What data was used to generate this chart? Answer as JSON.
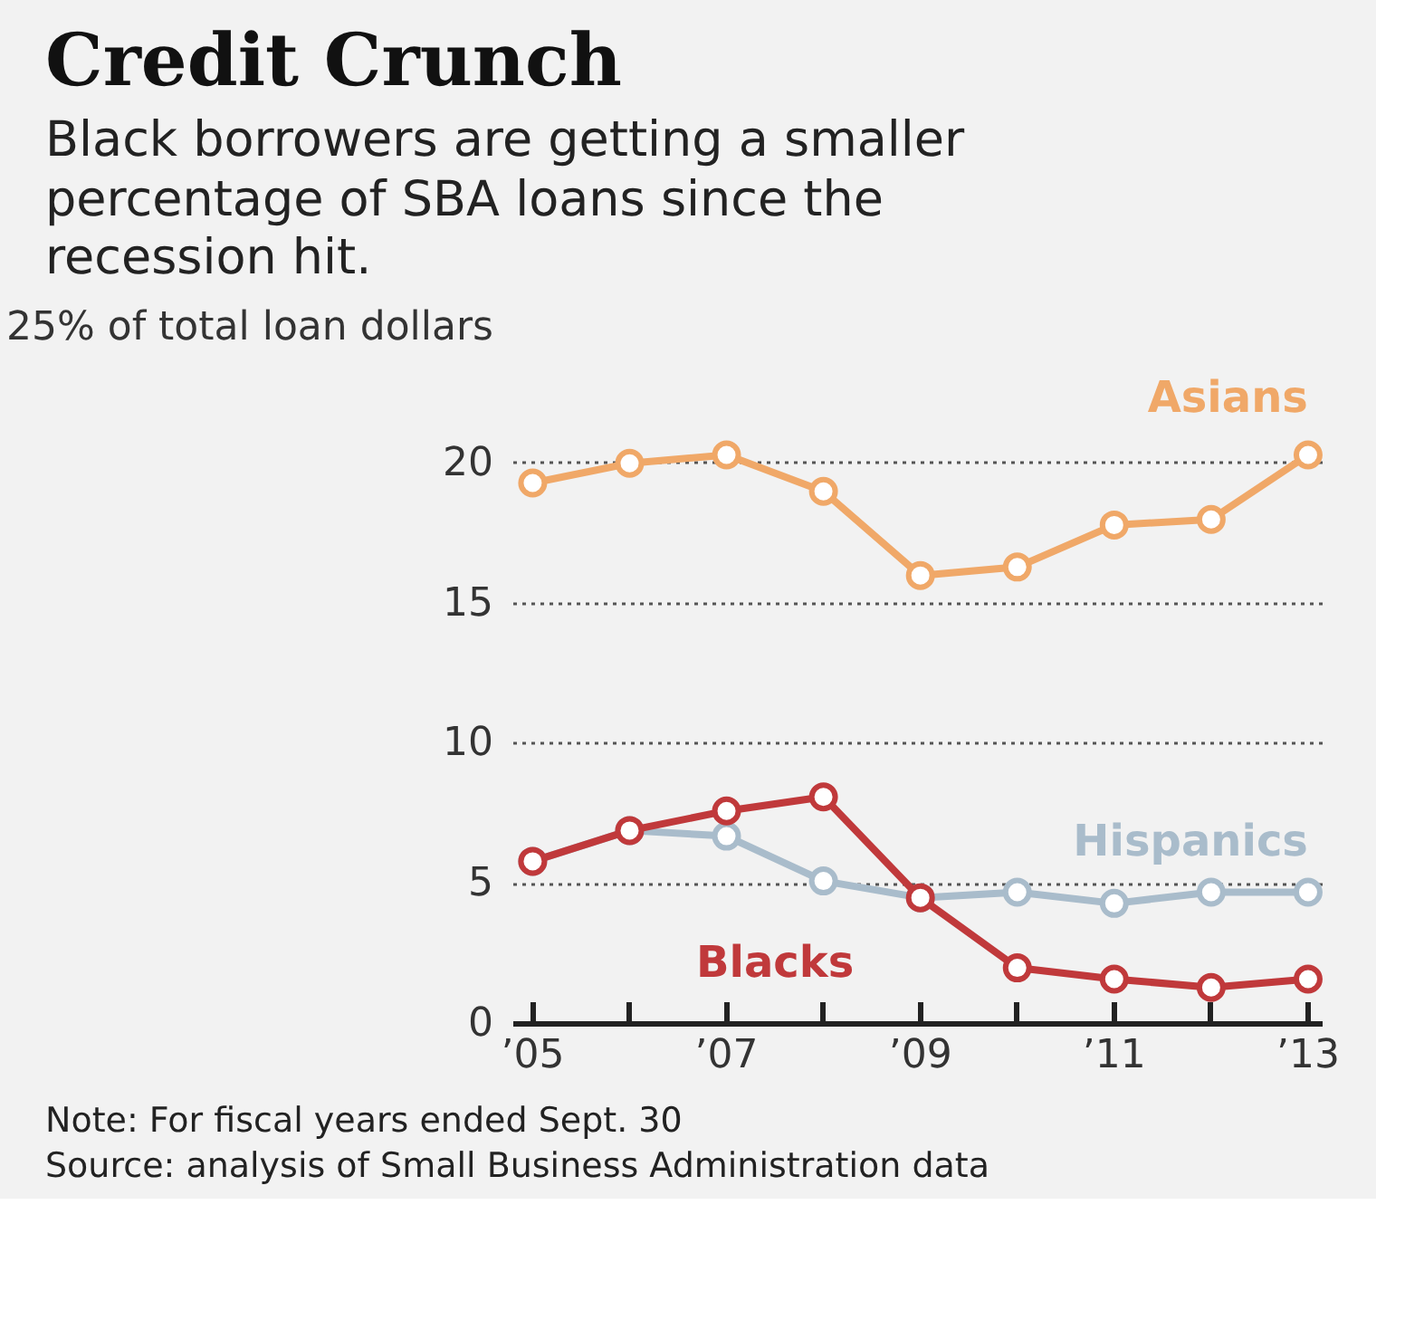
{
  "chart_data": {
    "type": "line",
    "title": "Credit Crunch",
    "subtitle": "Black borrowers are getting a smaller percentage of SBA loans since the recession hit.",
    "x": [
      2005,
      2006,
      2007,
      2008,
      2009,
      2010,
      2011,
      2012,
      2013
    ],
    "series": [
      {
        "name": "Asians",
        "color": "#f0a868",
        "values": [
          19.3,
          20.0,
          20.3,
          19.0,
          16.0,
          16.3,
          17.8,
          18.0,
          20.3
        ]
      },
      {
        "name": "Hispanics",
        "color": "#a9bccb",
        "values": [
          5.8,
          6.9,
          6.7,
          5.1,
          4.5,
          4.7,
          4.3,
          4.7,
          4.7
        ]
      },
      {
        "name": "Blacks",
        "color": "#c0393b",
        "values": [
          5.8,
          6.9,
          7.6,
          8.1,
          4.5,
          2.0,
          1.6,
          1.3,
          1.6
        ]
      }
    ],
    "xlim": [
      2004.8,
      2013.15
    ],
    "ylim": [
      0,
      25
    ],
    "xticks": [
      {
        "value": 2005,
        "label": "’05"
      },
      {
        "value": 2006,
        "label": null
      },
      {
        "value": 2007,
        "label": "’07"
      },
      {
        "value": 2008,
        "label": null
      },
      {
        "value": 2009,
        "label": "’09"
      },
      {
        "value": 2010,
        "label": null
      },
      {
        "value": 2011,
        "label": "’11"
      },
      {
        "value": 2012,
        "label": null
      },
      {
        "value": 2013,
        "label": "’13"
      }
    ],
    "yticks": [
      0,
      5,
      10,
      15,
      20,
      {
        "value": 25,
        "label": "25% of total loan dollars"
      }
    ],
    "grid": "y",
    "marker": "circle",
    "line_style": "solid",
    "annotations": [
      "Note: For fiscal years ended Sept. 30",
      "Source: analysis of Small Business Administration data"
    ]
  }
}
